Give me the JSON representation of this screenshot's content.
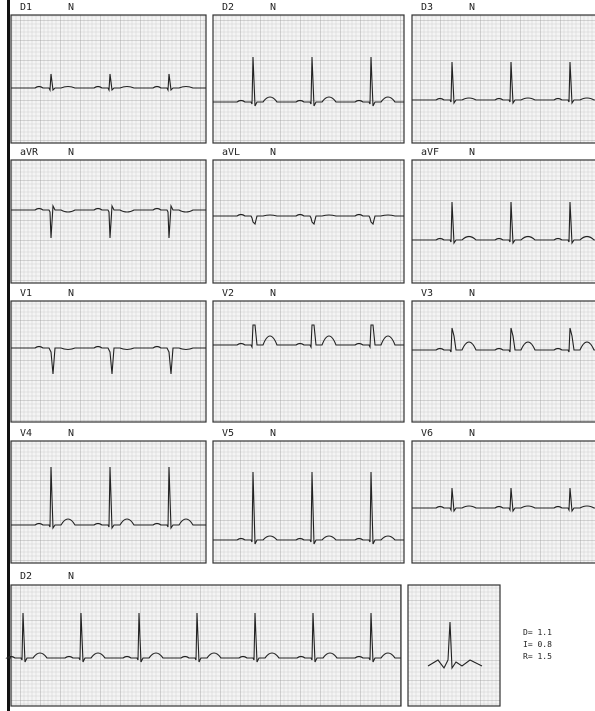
{
  "leads": [
    {
      "name": "D1",
      "mode": "N"
    },
    {
      "name": "D2",
      "mode": "N"
    },
    {
      "name": "D3",
      "mode": "N"
    },
    {
      "name": "aVR",
      "mode": "N"
    },
    {
      "name": "aVL",
      "mode": "N"
    },
    {
      "name": "aVF",
      "mode": "N"
    },
    {
      "name": "V1",
      "mode": "N"
    },
    {
      "name": "V2",
      "mode": "N"
    },
    {
      "name": "V3",
      "mode": "N"
    },
    {
      "name": "V4",
      "mode": "N"
    },
    {
      "name": "V5",
      "mode": "N"
    },
    {
      "name": "V6",
      "mode": "N"
    }
  ],
  "rhythm": {
    "name": "D2",
    "mode": "N"
  },
  "calibration": [
    "D= 1.1",
    "I= 0.8",
    "R= 1.5"
  ]
}
